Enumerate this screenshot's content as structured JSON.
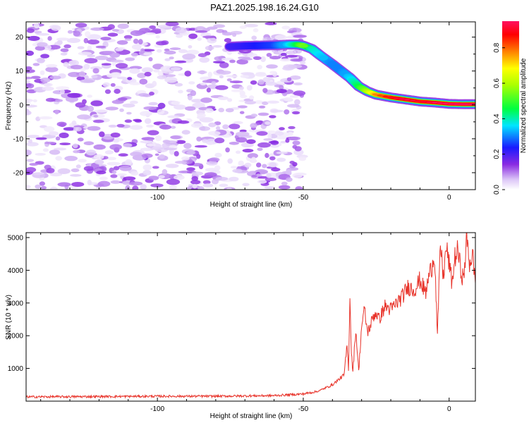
{
  "title": "PAZ1.2025.198.16.24.G10",
  "chart_data": [
    {
      "type": "heatmap",
      "xlabel": "Height of straight line (km)",
      "ylabel": "Frequency (Hz)",
      "xlim": [
        -145,
        9
      ],
      "ylim": [
        -25,
        24.5
      ],
      "xticks": [
        -100,
        -50,
        0
      ],
      "yticks": [
        -20,
        -10,
        0,
        10,
        20
      ],
      "colorbar": {
        "label": "Normalized spectral amplitude",
        "range": [
          0,
          0.95
        ],
        "ticks": [
          0,
          0.2,
          0.4,
          0.6,
          0.8
        ]
      },
      "ridge": {
        "description": "frequency of dominant signal vs height",
        "x": [
          -75,
          -70,
          -65,
          -60,
          -55,
          -52,
          -50,
          -47,
          -44,
          -40,
          -37,
          -34,
          -31,
          -28,
          -25,
          -20,
          -15,
          -10,
          -5,
          0,
          5,
          9
        ],
        "y": [
          17.2,
          17.4,
          17.5,
          17.6,
          17.8,
          17.8,
          17.5,
          16.5,
          14.5,
          12,
          10,
          8,
          5.5,
          4.0,
          3.0,
          2.2,
          1.6,
          1.0,
          0.7,
          0.3,
          0.2,
          0.2
        ],
        "amplitude": [
          0.2,
          0.22,
          0.24,
          0.26,
          0.35,
          0.45,
          0.55,
          0.4,
          0.35,
          0.3,
          0.3,
          0.35,
          0.45,
          0.6,
          0.75,
          0.85,
          0.9,
          0.85,
          0.9,
          0.92,
          0.95,
          0.9
        ]
      },
      "noise_region": {
        "x_range": [
          -145,
          -50
        ],
        "y_range": [
          -25,
          24
        ],
        "amplitude_range": [
          0.02,
          0.15
        ]
      }
    },
    {
      "type": "line",
      "xlabel": "Height of straight line (km)",
      "ylabel": "SNR (10 * v/v)",
      "xlim": [
        -145,
        9
      ],
      "ylim": [
        0,
        5150
      ],
      "xticks": [
        -100,
        -50,
        0
      ],
      "yticks": [
        1000,
        2000,
        3000,
        4000,
        5000
      ],
      "color": "#e8332a",
      "series": [
        {
          "x": [
            -145,
            -120,
            -100,
            -80,
            -60,
            -50,
            -45,
            -40,
            -38,
            -36,
            -35,
            -34.5,
            -34,
            -33.5,
            -33,
            -32,
            -31,
            -30,
            -29,
            -28,
            -27,
            -26,
            -25,
            -24,
            -22,
            -20,
            -18,
            -16,
            -14,
            -12,
            -10,
            -8,
            -7,
            -6,
            -5,
            -4,
            -3,
            -2,
            -1,
            0,
            1,
            2,
            3,
            4,
            5,
            6,
            7,
            8,
            9
          ],
          "y": [
            130,
            140,
            150,
            150,
            170,
            220,
            300,
            500,
            650,
            800,
            1700,
            1000,
            3200,
            1500,
            900,
            2200,
            900,
            2300,
            2800,
            2100,
            2300,
            2600,
            2700,
            2500,
            2900,
            2800,
            3000,
            3200,
            3500,
            3400,
            3700,
            3300,
            3800,
            4100,
            4500,
            2000,
            4800,
            3800,
            4700,
            4200,
            3600,
            4400,
            4600,
            4000,
            3700,
            5000,
            4200,
            4500,
            3600
          ]
        }
      ]
    }
  ]
}
